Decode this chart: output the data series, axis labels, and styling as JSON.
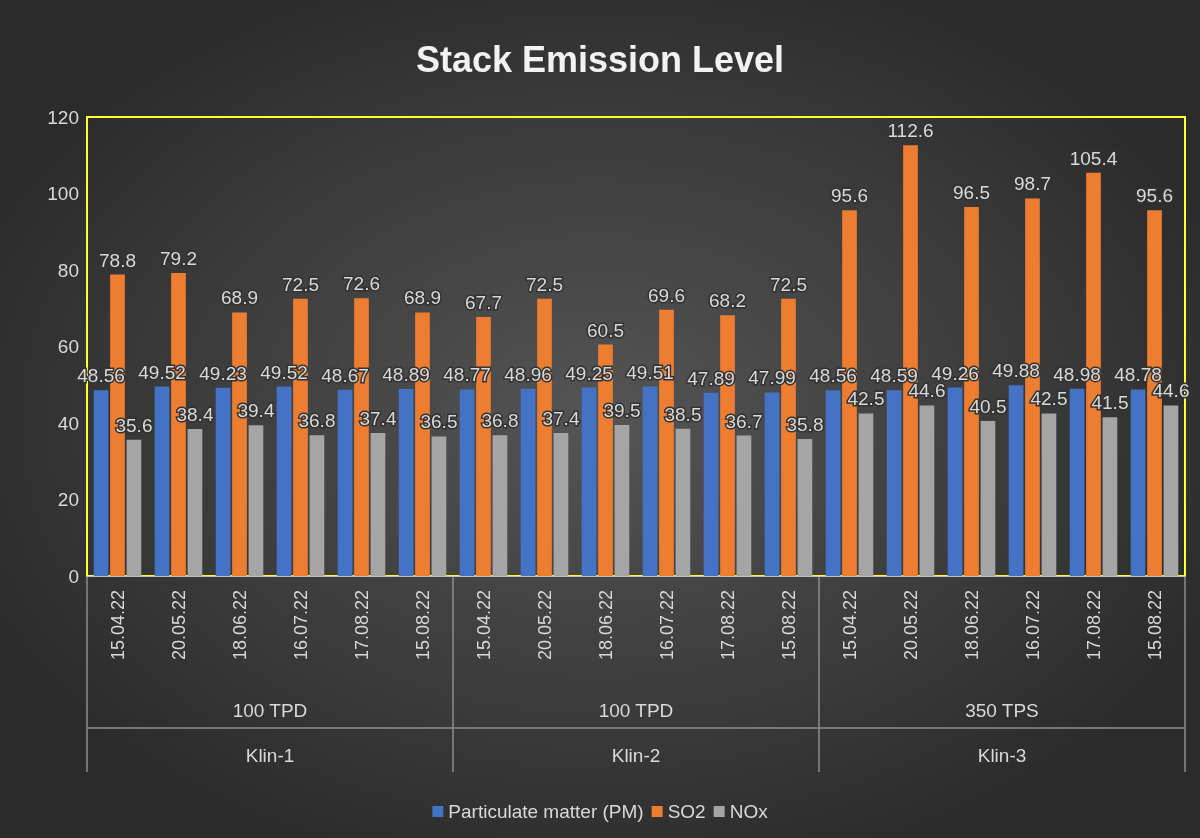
{
  "chart_data": {
    "type": "bar",
    "title": "Stack Emission Level",
    "categories": [
      "15.04.22",
      "20.05.22",
      "18.06.22",
      "16.07.22",
      "17.08.22",
      "15.08.22",
      "15.04.22",
      "20.05.22",
      "18.06.22",
      "16.07.22",
      "17.08.22",
      "15.08.22",
      "15.04.22",
      "20.05.22",
      "18.06.22",
      "16.07.22",
      "17.08.22",
      "15.08.22"
    ],
    "series": [
      {
        "name": "Particulate matter (PM)",
        "color": "#4472c4",
        "values": [
          48.56,
          49.52,
          49.23,
          49.52,
          48.67,
          48.89,
          48.77,
          48.96,
          49.25,
          49.51,
          47.89,
          47.99,
          48.56,
          48.59,
          49.26,
          49.88,
          48.98,
          48.78
        ]
      },
      {
        "name": "SO2",
        "color": "#ed7d31",
        "values": [
          78.8,
          79.2,
          68.9,
          72.5,
          72.6,
          68.9,
          67.7,
          72.5,
          60.5,
          69.6,
          68.2,
          72.5,
          95.6,
          112.6,
          96.5,
          98.7,
          105.4,
          95.6
        ]
      },
      {
        "name": "NOx",
        "color": "#a5a5a5",
        "values": [
          35.6,
          38.4,
          39.4,
          36.8,
          37.4,
          36.5,
          36.8,
          37.4,
          39.5,
          38.5,
          36.7,
          35.8,
          42.5,
          44.6,
          40.5,
          42.5,
          41.5,
          44.6
        ]
      }
    ],
    "ylim": [
      0,
      120
    ],
    "yticks": [
      0,
      20,
      40,
      60,
      80,
      100,
      120
    ],
    "grid": false,
    "legend": "bottom",
    "data_labels": true,
    "annotations": [
      "100 TPD",
      "100 TPD",
      "350 TPS",
      "Klin-1",
      "Klin-2",
      "Klin-3"
    ]
  }
}
